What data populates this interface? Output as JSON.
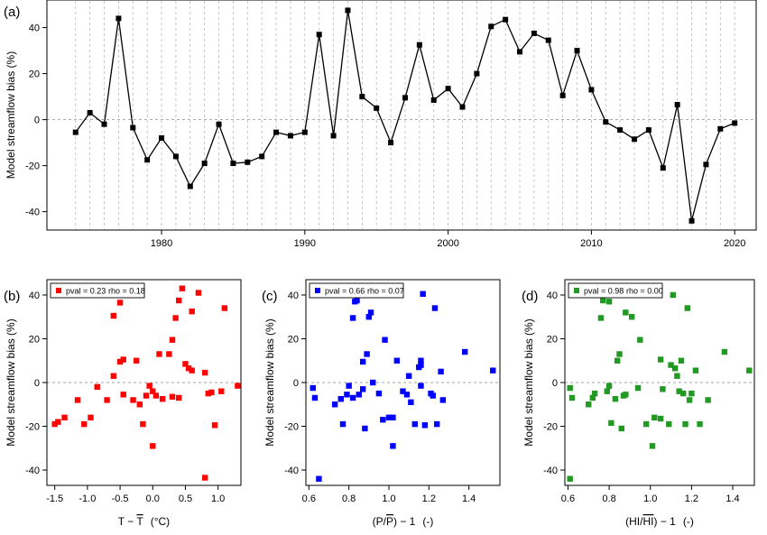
{
  "chart_data": [
    {
      "type": "line",
      "panel_label": "(a)",
      "ylabel": "Model streamflow bias (%)",
      "xlabel": "",
      "xlim": [
        1972,
        2021.5
      ],
      "ylim": [
        -48,
        52
      ],
      "xticks": [
        1980,
        1990,
        2000,
        2010,
        2020
      ],
      "yticks": [
        -40,
        -20,
        0,
        20,
        40
      ],
      "grid": "vertical dashed lines at each year",
      "zero_line": true,
      "x": [
        1974,
        1975,
        1976,
        1977,
        1978,
        1979,
        1980,
        1981,
        1982,
        1983,
        1984,
        1985,
        1986,
        1987,
        1988,
        1989,
        1990,
        1991,
        1992,
        1993,
        1994,
        1995,
        1996,
        1997,
        1998,
        1999,
        2000,
        2001,
        2002,
        2003,
        2004,
        2005,
        2006,
        2007,
        2008,
        2009,
        2010,
        2011,
        2012,
        2013,
        2014,
        2015,
        2016,
        2017,
        2018,
        2019,
        2020
      ],
      "series": [
        {
          "color": "#000000",
          "values": [
            -5.5,
            3,
            -2,
            44,
            -3.5,
            -17.5,
            -8,
            -16,
            -29,
            -19,
            -2,
            -19,
            -18.5,
            -16,
            -5.5,
            -7,
            -5.5,
            37,
            -7,
            47.5,
            10,
            5,
            -10,
            9.5,
            32.5,
            8.5,
            13.5,
            5.5,
            20,
            40.5,
            43.5,
            29.5,
            37.5,
            34.5,
            10.5,
            30,
            13,
            -1,
            -4.5,
            -8.5,
            -4.5,
            -21,
            6.5,
            -44,
            -19.5,
            -4,
            -1.5
          ]
        }
      ]
    },
    {
      "type": "scatter",
      "panel_label": "(b)",
      "ylabel": "Model streamflow bias (%)",
      "xlabel_main": "T − ",
      "xlabel_bar": "T",
      "xlabel_unit": "(°C)",
      "xlim": [
        -1.62,
        1.35
      ],
      "ylim": [
        -47,
        47
      ],
      "xticks": [
        -1.5,
        -1.0,
        -0.5,
        0.0,
        0.5,
        1.0
      ],
      "xtick_labels": [
        "-1.5",
        "-1.0",
        "-0.5",
        "0.0",
        "0.5",
        "1.0"
      ],
      "yticks": [
        -40,
        -20,
        0,
        20,
        40
      ],
      "legend": "top-left",
      "legend_text": {
        "pval_label": "pval = 0.23",
        "rho_label": "rho = 0.18"
      },
      "series": [
        {
          "color": "#ff0000",
          "points": [
            [
              -1.5,
              -19
            ],
            [
              -1.45,
              -18
            ],
            [
              -1.35,
              -16
            ],
            [
              -1.15,
              -8
            ],
            [
              -1.05,
              -19
            ],
            [
              -0.95,
              -16
            ],
            [
              -0.85,
              -2
            ],
            [
              -0.7,
              -8
            ],
            [
              -0.6,
              3
            ],
            [
              -0.6,
              30.5
            ],
            [
              -0.5,
              36.5
            ],
            [
              -0.5,
              9.5
            ],
            [
              -0.45,
              10.5
            ],
            [
              -0.45,
              -5.5
            ],
            [
              -0.3,
              -8
            ],
            [
              -0.25,
              10
            ],
            [
              -0.2,
              -10
            ],
            [
              -0.15,
              -19
            ],
            [
              -0.1,
              -6
            ],
            [
              -0.05,
              -1.5
            ],
            [
              0,
              -29
            ],
            [
              0,
              -4
            ],
            [
              0.05,
              -6
            ],
            [
              0.1,
              13
            ],
            [
              0.15,
              -7.5
            ],
            [
              0.25,
              13
            ],
            [
              0.3,
              19.5
            ],
            [
              0.3,
              -6.5
            ],
            [
              0.35,
              29.5
            ],
            [
              0.4,
              -7
            ],
            [
              0.4,
              37.5
            ],
            [
              0.45,
              43
            ],
            [
              0.5,
              8.5
            ],
            [
              0.55,
              6.5
            ],
            [
              0.6,
              32.5
            ],
            [
              0.6,
              5.5
            ],
            [
              0.7,
              41
            ],
            [
              0.8,
              4.5
            ],
            [
              0.8,
              -43.5
            ],
            [
              0.85,
              -5
            ],
            [
              0.9,
              -4.5
            ],
            [
              0.95,
              -19.5
            ],
            [
              1.05,
              -4
            ],
            [
              1.1,
              34
            ],
            [
              1.3,
              -1.5
            ]
          ]
        }
      ]
    },
    {
      "type": "scatter",
      "panel_label": "(c)",
      "ylabel": "Model streamflow bias (%)",
      "xlabel_main": "(P/",
      "xlabel_bar": "P",
      "xlabel_tail": ") − 1",
      "xlabel_unit": "(-)",
      "xlim": [
        0.585,
        1.555
      ],
      "ylim": [
        -47,
        47
      ],
      "xticks": [
        0.6,
        0.8,
        1.0,
        1.2,
        1.4
      ],
      "xtick_labels": [
        "0.6",
        "0.8",
        "1.0",
        "1.2",
        "1.4"
      ],
      "yticks": [
        -40,
        -20,
        0,
        20,
        40
      ],
      "legend": "top-left",
      "legend_text": {
        "pval_label": "pval = 0.66",
        "rho_label": "rho = 0.07"
      },
      "series": [
        {
          "color": "#0000ff",
          "points": [
            [
              0.62,
              -2.5
            ],
            [
              0.63,
              -7
            ],
            [
              0.65,
              -44
            ],
            [
              0.73,
              -10
            ],
            [
              0.76,
              -7.5
            ],
            [
              0.77,
              -19
            ],
            [
              0.79,
              -5.5
            ],
            [
              0.8,
              -1.5
            ],
            [
              0.82,
              -7
            ],
            [
              0.82,
              29.5
            ],
            [
              0.83,
              37
            ],
            [
              0.84,
              37.5
            ],
            [
              0.85,
              -5.5
            ],
            [
              0.87,
              -3
            ],
            [
              0.87,
              9.5
            ],
            [
              0.88,
              -21
            ],
            [
              0.89,
              13
            ],
            [
              0.9,
              30
            ],
            [
              0.91,
              32
            ],
            [
              0.92,
              0
            ],
            [
              0.95,
              -5
            ],
            [
              0.97,
              -17
            ],
            [
              0.98,
              19.5
            ],
            [
              1.0,
              -16
            ],
            [
              1.02,
              -16
            ],
            [
              1.02,
              -29
            ],
            [
              1.04,
              10
            ],
            [
              1.07,
              -4
            ],
            [
              1.09,
              -5.5
            ],
            [
              1.1,
              3
            ],
            [
              1.11,
              -9
            ],
            [
              1.13,
              -19
            ],
            [
              1.15,
              7
            ],
            [
              1.16,
              8
            ],
            [
              1.16,
              10
            ],
            [
              1.16,
              -1.5
            ],
            [
              1.17,
              40.5
            ],
            [
              1.18,
              -19.5
            ],
            [
              1.21,
              -5
            ],
            [
              1.22,
              -6
            ],
            [
              1.23,
              34
            ],
            [
              1.24,
              -19
            ],
            [
              1.26,
              5
            ],
            [
              1.27,
              -8
            ],
            [
              1.38,
              14
            ],
            [
              1.52,
              5.5
            ]
          ]
        }
      ]
    },
    {
      "type": "scatter",
      "panel_label": "(d)",
      "ylabel": "Model streamflow bias (%)",
      "xlabel_main": "(HI/",
      "xlabel_bar": "HI",
      "xlabel_tail": ") − 1",
      "xlabel_unit": "(-)",
      "xlim": [
        0.585,
        1.505
      ],
      "ylim": [
        -47,
        47
      ],
      "xticks": [
        0.6,
        0.8,
        1.0,
        1.2,
        1.4
      ],
      "xtick_labels": [
        "0.6",
        "0.8",
        "1.0",
        "1.2",
        "1.4"
      ],
      "yticks": [
        -40,
        -20,
        0,
        20,
        40
      ],
      "legend": "top-left",
      "legend_text": {
        "pval_label": "pval = 0.98",
        "rho_label": "rho = 0.00"
      },
      "series": [
        {
          "color": "#229922",
          "points": [
            [
              0.61,
              -2.5
            ],
            [
              0.62,
              -7
            ],
            [
              0.61,
              -44
            ],
            [
              0.7,
              -10
            ],
            [
              0.72,
              -7
            ],
            [
              0.73,
              -5
            ],
            [
              0.76,
              29.5
            ],
            [
              0.77,
              37.5
            ],
            [
              0.79,
              -4
            ],
            [
              0.8,
              -1.5
            ],
            [
              0.8,
              37
            ],
            [
              0.81,
              -18.5
            ],
            [
              0.83,
              -7.5
            ],
            [
              0.84,
              10
            ],
            [
              0.85,
              13
            ],
            [
              0.86,
              -21
            ],
            [
              0.87,
              -6
            ],
            [
              0.88,
              -5.5
            ],
            [
              0.88,
              32
            ],
            [
              0.91,
              30
            ],
            [
              0.94,
              -2.5
            ],
            [
              0.95,
              19.5
            ],
            [
              0.98,
              -19
            ],
            [
              1.01,
              -29
            ],
            [
              1.02,
              -16
            ],
            [
              1.05,
              -16.5
            ],
            [
              1.05,
              10.5
            ],
            [
              1.06,
              -3
            ],
            [
              1.09,
              -19
            ],
            [
              1.1,
              8
            ],
            [
              1.11,
              40
            ],
            [
              1.12,
              6.5
            ],
            [
              1.13,
              3
            ],
            [
              1.14,
              -4
            ],
            [
              1.15,
              10
            ],
            [
              1.16,
              -5
            ],
            [
              1.17,
              -19
            ],
            [
              1.18,
              34
            ],
            [
              1.19,
              -8
            ],
            [
              1.2,
              -5
            ],
            [
              1.22,
              5.5
            ],
            [
              1.24,
              -19
            ],
            [
              1.28,
              -8
            ],
            [
              1.36,
              14
            ],
            [
              1.48,
              5.5
            ]
          ]
        }
      ]
    }
  ]
}
